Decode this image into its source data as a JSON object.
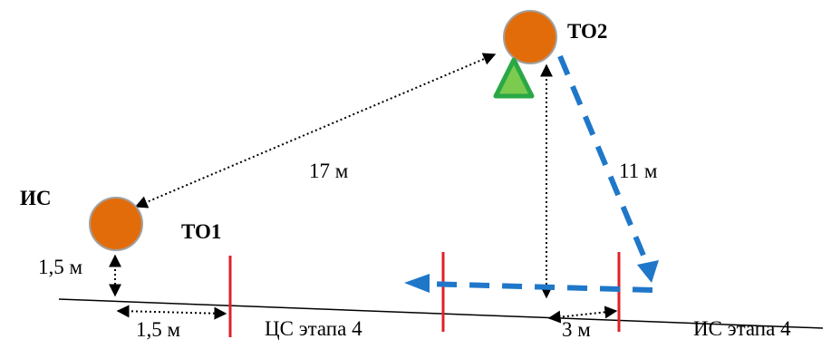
{
  "colors": {
    "node_fill": "#E36C0A",
    "node_stroke": "#A1A1A1",
    "marker_fill": "#7BCB4F",
    "marker_stroke": "#2AA845",
    "stage_line": "#E0202A",
    "path_blue": "#1F77C9",
    "ground_line": "#000000"
  },
  "labels": {
    "node_is": "ИС",
    "node_to1": "ТО1",
    "node_to2": "ТО2",
    "dist_17": "17 м",
    "dist_11": "11 м",
    "height_is": "1,5 м",
    "offset_is": "1,5 м",
    "dist_3": "3 м",
    "stage4_cs": "ЦС этапа 4",
    "stage4_is": "ИС этапа 4"
  },
  "icons": {
    "node": "orange-circle-node",
    "marker": "green-triangle-marker"
  }
}
